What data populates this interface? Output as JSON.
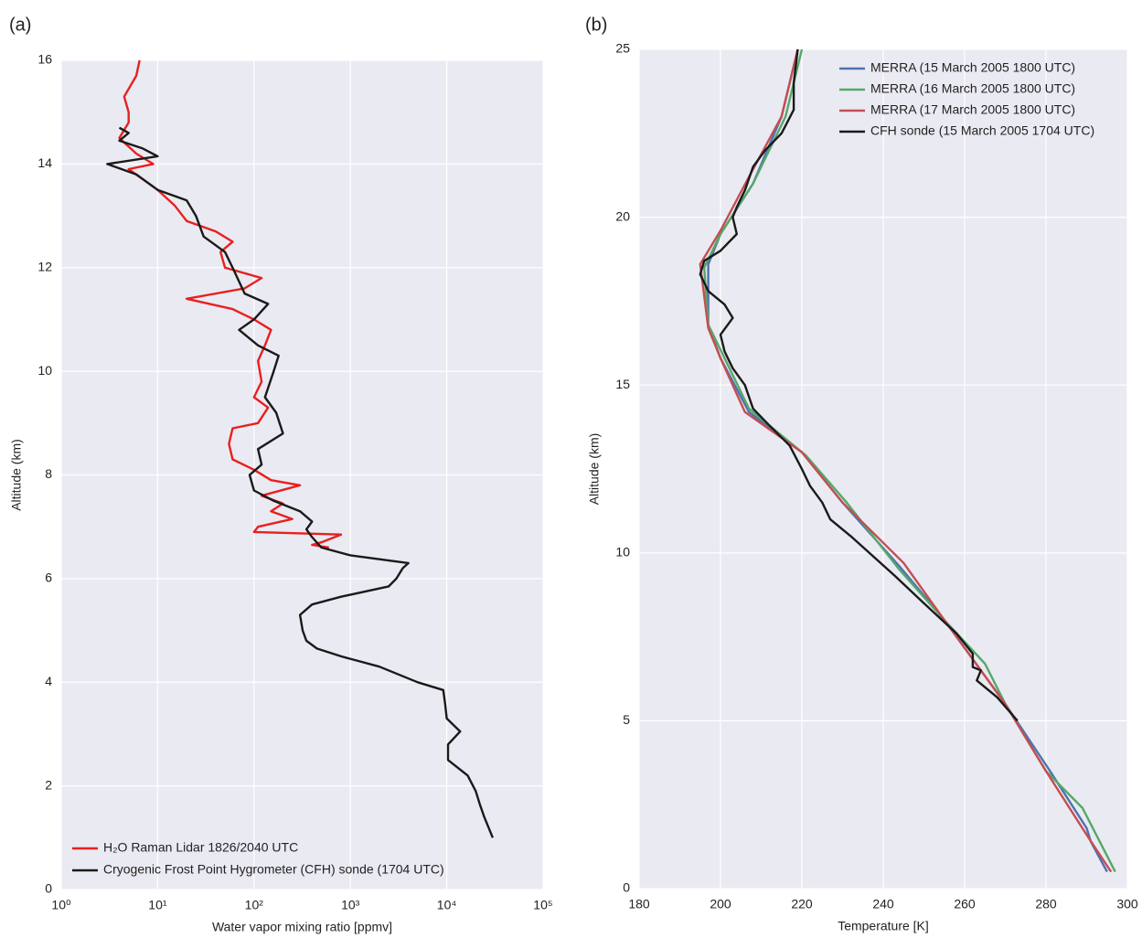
{
  "chart_data": [
    {
      "type": "line",
      "panel_label": "(a)",
      "xlabel": "Water vapor mixing ratio [ppmv]",
      "ylabel": "Altitude (km)",
      "xscale": "log",
      "grid": true,
      "legend": "lower left",
      "xlim": [
        1,
        100000
      ],
      "ylim": [
        0,
        16
      ],
      "xticks": [
        {
          "value": 1,
          "label": "10⁰"
        },
        {
          "value": 10,
          "label": "10¹"
        },
        {
          "value": 100,
          "label": "10²"
        },
        {
          "value": 1000,
          "label": "10³"
        },
        {
          "value": 10000,
          "label": "10⁴"
        },
        {
          "value": 100000,
          "label": "10⁵"
        }
      ],
      "yticks": [
        0,
        2,
        4,
        6,
        8,
        10,
        12,
        14,
        16
      ],
      "series": [
        {
          "name": "H₂O Raman Lidar 1826/2040 UTC",
          "color": "#e8201f",
          "x": [
            600,
            400,
            500,
            800,
            100,
            110,
            250,
            150,
            200,
            120,
            300,
            150,
            100,
            60,
            55,
            60,
            110,
            140,
            100,
            120,
            110,
            130,
            150,
            100,
            60,
            20,
            80,
            120,
            50,
            45,
            60,
            40,
            20,
            15,
            10,
            5,
            9,
            6,
            4,
            5,
            5,
            4.5,
            6,
            6.5
          ],
          "y": [
            6.6,
            6.65,
            6.7,
            6.85,
            6.9,
            7.0,
            7.15,
            7.3,
            7.45,
            7.6,
            7.8,
            7.9,
            8.1,
            8.3,
            8.6,
            8.9,
            9.0,
            9.3,
            9.5,
            9.8,
            10.2,
            10.5,
            10.8,
            11.0,
            11.2,
            11.4,
            11.6,
            11.8,
            12.0,
            12.3,
            12.5,
            12.7,
            12.9,
            13.2,
            13.5,
            13.9,
            14.0,
            14.2,
            14.5,
            14.8,
            15.0,
            15.3,
            15.7,
            16.0
          ]
        },
        {
          "name": "Cryogenic Frost Point Hygrometer (CFH) sonde (1704 UTC)",
          "color": "#1a1a1a",
          "x": [
            30000,
            24500,
            22000,
            20000,
            16500,
            10300,
            10300,
            13800,
            10000,
            9600,
            9200,
            5000,
            2000,
            800,
            450,
            350,
            320,
            300,
            400,
            800,
            2500,
            3000,
            3500,
            4000,
            1000,
            500,
            400,
            350,
            400,
            300,
            160,
            100,
            90,
            120,
            110,
            200,
            170,
            130,
            160,
            180,
            110,
            70,
            100,
            140,
            80,
            60,
            50,
            30,
            25,
            20,
            10,
            6,
            3,
            10,
            7,
            4,
            5,
            4
          ],
          "y": [
            1.0,
            1.4,
            1.65,
            1.9,
            2.2,
            2.5,
            2.8,
            3.05,
            3.3,
            3.6,
            3.85,
            4.0,
            4.3,
            4.5,
            4.65,
            4.8,
            5.0,
            5.3,
            5.5,
            5.65,
            5.85,
            6.0,
            6.2,
            6.3,
            6.45,
            6.6,
            6.8,
            6.95,
            7.1,
            7.3,
            7.5,
            7.7,
            8.0,
            8.2,
            8.5,
            8.8,
            9.2,
            9.5,
            10.0,
            10.3,
            10.5,
            10.8,
            11.0,
            11.3,
            11.5,
            12.0,
            12.3,
            12.6,
            13.0,
            13.3,
            13.5,
            13.8,
            14.0,
            14.15,
            14.3,
            14.45,
            14.6,
            14.7
          ]
        }
      ]
    },
    {
      "type": "line",
      "panel_label": "(b)",
      "xlabel": "Temperature [K]",
      "ylabel": "Altitude (km)",
      "xscale": "linear",
      "grid": true,
      "legend": "upper right",
      "xlim": [
        180,
        300
      ],
      "ylim": [
        0,
        25
      ],
      "xticks": [
        180,
        200,
        220,
        240,
        260,
        280,
        300
      ],
      "yticks": [
        0,
        5,
        10,
        15,
        20,
        25
      ],
      "series": [
        {
          "name": "MERRA (15 March 2005 1800 UTC)",
          "color": "#4c72b0",
          "x": [
            295,
            291,
            290,
            281,
            270,
            264,
            255,
            244,
            230,
            220,
            207,
            200,
            197,
            197,
            200,
            208,
            215,
            219
          ],
          "y": [
            0.5,
            1.4,
            1.8,
            3.5,
            5.5,
            6.5,
            8.0,
            9.6,
            11.5,
            13.0,
            14.2,
            15.8,
            16.8,
            18.6,
            19.5,
            21.0,
            23.0,
            25.0
          ]
        },
        {
          "name": "MERRA (16 March 2005 1800 UTC)",
          "color": "#55a868",
          "x": [
            297,
            289,
            280,
            270,
            265,
            255,
            244,
            231,
            221,
            207,
            201,
            197,
            196,
            200,
            208,
            216,
            220
          ],
          "y": [
            0.5,
            2.4,
            3.5,
            5.5,
            6.7,
            8.0,
            9.5,
            11.5,
            12.9,
            14.3,
            15.8,
            16.8,
            18.5,
            19.5,
            21.0,
            23.0,
            25.0
          ]
        },
        {
          "name": "MERRA (17 March 2005 1800 UTC)",
          "color": "#c44e52",
          "x": [
            296,
            290,
            280,
            270,
            264,
            255,
            245,
            230,
            220,
            206,
            200,
            197,
            195,
            200,
            207,
            215,
            219
          ],
          "y": [
            0.5,
            1.6,
            3.5,
            5.5,
            6.5,
            8.0,
            9.7,
            11.5,
            13.0,
            14.2,
            15.8,
            16.7,
            18.6,
            19.6,
            21.2,
            23.0,
            25.0
          ]
        },
        {
          "name": "CFH sonde (15 March 2005 1704 UTC)",
          "color": "#1a1a1a",
          "x": [
            273,
            268,
            263,
            264,
            262,
            262,
            258,
            250,
            243,
            232,
            227,
            225,
            222,
            220,
            217,
            212,
            208,
            206,
            203,
            201,
            200,
            203,
            201,
            197,
            195,
            196,
            200,
            204,
            203,
            204,
            206,
            208,
            211,
            215,
            218,
            218,
            219
          ],
          "y": [
            5.0,
            5.7,
            6.2,
            6.5,
            6.6,
            7.0,
            7.6,
            8.5,
            9.3,
            10.5,
            11.0,
            11.5,
            12.0,
            12.5,
            13.2,
            13.8,
            14.3,
            15.0,
            15.5,
            16.0,
            16.5,
            17.0,
            17.4,
            17.8,
            18.3,
            18.7,
            19.0,
            19.5,
            20.0,
            20.3,
            20.8,
            21.5,
            22.0,
            22.5,
            23.2,
            24.0,
            25.0
          ]
        }
      ]
    }
  ]
}
